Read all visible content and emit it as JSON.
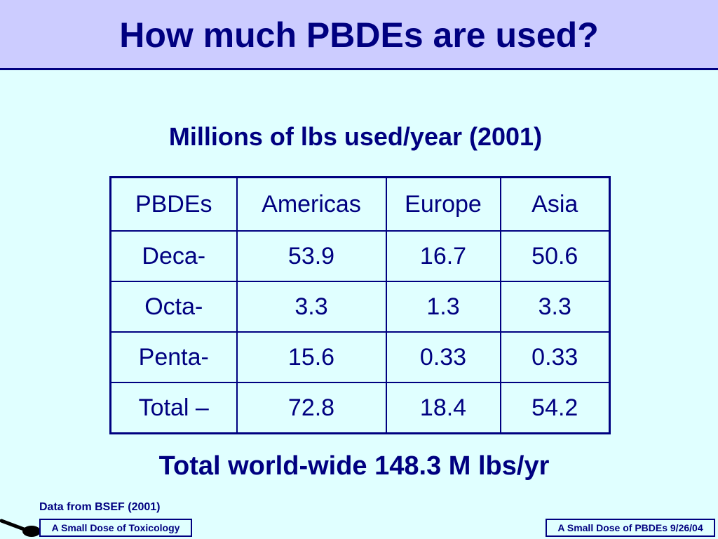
{
  "slide": {
    "title": "How much PBDEs are used?",
    "subtitle": "Millions of lbs used/year (2001)",
    "summary": "Total world-wide 148.3 M lbs/yr",
    "source": "Data from BSEF (2001)"
  },
  "table": {
    "headers": [
      "PBDEs",
      "Americas",
      "Europe",
      "Asia"
    ],
    "rows": [
      [
        "Deca-",
        "53.9",
        "16.7",
        "50.6"
      ],
      [
        "Octa-",
        "3.3",
        "1.3",
        "3.3"
      ],
      [
        "Penta-",
        "15.6",
        "0.33",
        "0.33"
      ],
      [
        "Total –",
        "72.8",
        "18.4",
        "54.2"
      ]
    ]
  },
  "footer": {
    "left_label": "A Small Dose of Toxicology",
    "right_label": "A Small Dose of PBDEs  9/26/04"
  },
  "colors": {
    "background": "#e0ffff",
    "title_bar": "#ccccff",
    "text": "#000080"
  },
  "icons": {
    "logo": "spoon-icon"
  }
}
